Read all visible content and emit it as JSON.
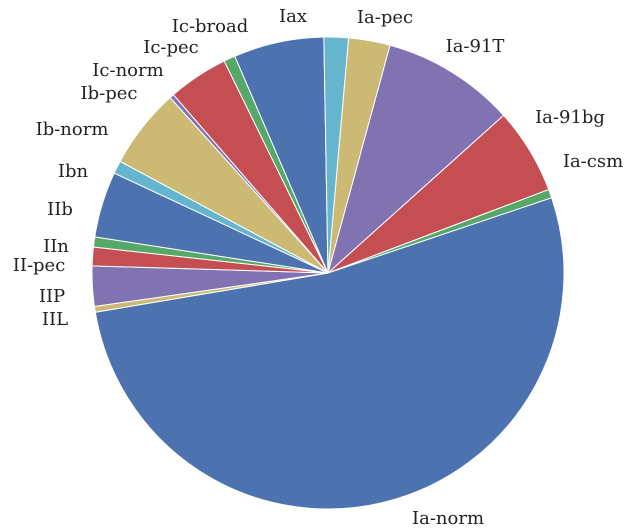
{
  "chart_data": {
    "type": "pie",
    "title": "",
    "slices": [
      {
        "label": "Ia-pec",
        "value": 2.9,
        "color": "#CCB974"
      },
      {
        "label": "Ia-91T",
        "value": 9.3,
        "color": "#8172B2"
      },
      {
        "label": "Ia-91bg",
        "value": 6.0,
        "color": "#C44E52"
      },
      {
        "label": "Ia-csm",
        "value": 0.6,
        "color": "#55A868"
      },
      {
        "label": "Ia-norm",
        "value": 53.5,
        "color": "#4C72B0"
      },
      {
        "label": "IIL",
        "value": 0.4,
        "color": "#CCB974"
      },
      {
        "label": "IIP",
        "value": 2.8,
        "color": "#8172B2"
      },
      {
        "label": "II-pec",
        "value": 1.3,
        "color": "#C44E52"
      },
      {
        "label": "IIn",
        "value": 0.7,
        "color": "#55A868"
      },
      {
        "label": "IIb",
        "value": 4.6,
        "color": "#4C72B0"
      },
      {
        "label": "Ibn",
        "value": 0.9,
        "color": "#64B5CD"
      },
      {
        "label": "Ib-norm",
        "value": 5.6,
        "color": "#CCB974"
      },
      {
        "label": "Ib-pec",
        "value": 0.3,
        "color": "#8172B2"
      },
      {
        "label": "Ic-norm",
        "value": 4.2,
        "color": "#C44E52"
      },
      {
        "label": "Ic-pec",
        "value": 0.8,
        "color": "#55A868"
      },
      {
        "label": "Ic-broad",
        "value": 6.3,
        "color": "#4C72B0"
      },
      {
        "label": "Iax",
        "value": 1.7,
        "color": "#64B5CD"
      }
    ]
  }
}
